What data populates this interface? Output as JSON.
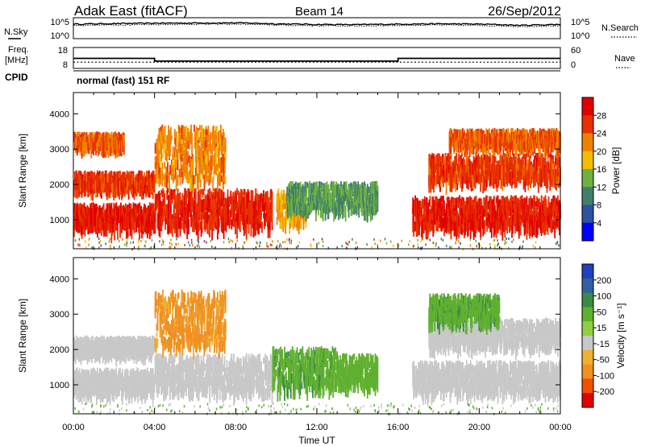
{
  "header": {
    "title": "Adak East (fitACF)",
    "beam": "Beam 14",
    "date": "26/Sep/2012"
  },
  "top_panel": {
    "noise_left_label": "N.Sky",
    "noise_right_label": "N.Search",
    "noise_left_ticks": [
      "10^5",
      "10^0"
    ],
    "noise_right_ticks": [
      "10^5",
      "10^0"
    ],
    "freq_label": "Freq.",
    "freq_unit": "[MHz]",
    "freq_ticks": [
      "18",
      "8"
    ],
    "nave_label": "Nave",
    "nave_ticks": [
      "60",
      "0"
    ],
    "cpid_label": "CPID",
    "cpid_value": "normal (fast) 151 RF"
  },
  "colors": {
    "power_scale": [
      "#0000ff",
      "#3050a0",
      "#40806a",
      "#70b040",
      "#f0c000",
      "#f08000",
      "#e83000",
      "#e00000"
    ],
    "velocity_scale": [
      "#e00000",
      "#f05000",
      "#f09020",
      "#f0b030",
      "#c8c8c8",
      "#90d040",
      "#60b030",
      "#3a8a4a",
      "#3060a0",
      "#2040c0"
    ],
    "ground_scatter": "#a0a0a0"
  },
  "chart_data": [
    {
      "type": "line",
      "name": "noise-panel",
      "xlabel": "",
      "ylabel_left": "N.Sky",
      "ylabel_right": "N.Search",
      "y_scale": "log",
      "ylim": [
        1,
        100000
      ],
      "x_range": [
        "00:00",
        "24:00"
      ],
      "series": [
        {
          "name": "N.Sky",
          "x_hours": [
            0,
            2,
            4,
            6,
            8,
            10,
            12,
            14,
            16,
            18,
            20,
            22,
            24
          ],
          "values": [
            3000,
            4000,
            5000,
            5500,
            6000,
            3500,
            2500,
            2200,
            3000,
            3500,
            3000,
            1500,
            2500
          ]
        },
        {
          "name": "N.Search",
          "x_hours": [
            0,
            2,
            4,
            6,
            8,
            10,
            12,
            14,
            16,
            18,
            20,
            22,
            24
          ],
          "values": [
            1500,
            2000,
            2500,
            2800,
            3000,
            1800,
            1300,
            1100,
            1500,
            1800,
            1500,
            800,
            1200
          ]
        }
      ]
    },
    {
      "type": "line",
      "name": "frequency-panel",
      "ylabel_left": "Freq. [MHz]",
      "ylabel_right": "Nave",
      "ylim_freq": [
        8,
        18
      ],
      "ylim_nave": [
        0,
        60
      ],
      "series": [
        {
          "name": "Freq.",
          "x_hours": [
            0,
            4,
            4,
            16,
            16,
            24
          ],
          "values": [
            12.8,
            12.8,
            11.5,
            11.5,
            12.8,
            12.8
          ]
        },
        {
          "name": "Nave",
          "x_hours": [
            0,
            24
          ],
          "values": [
            18,
            18
          ]
        }
      ]
    },
    {
      "type": "heatmap",
      "name": "power-panel",
      "xlabel": "Time UT",
      "ylabel": "Slant Range [km]",
      "x_range_hours": [
        0,
        24
      ],
      "ylim": [
        180,
        4600
      ],
      "y_ticks": [
        1000,
        2000,
        3000,
        4000
      ],
      "colorbar_label": "Power [dB]",
      "colorbar_range": [
        0,
        32
      ],
      "colorbar_ticks": [
        "4",
        "8",
        "12",
        "16",
        "20",
        "24",
        "28"
      ],
      "echo_bands": [
        {
          "t0": 0.0,
          "t1": 4.0,
          "r0": 900,
          "r1": 1500,
          "level": 28
        },
        {
          "t0": 0.0,
          "t1": 4.0,
          "r0": 2000,
          "r1": 2400,
          "level": 26
        },
        {
          "t0": 0.0,
          "t1": 2.5,
          "r0": 3200,
          "r1": 3500,
          "level": 24
        },
        {
          "t0": 4.0,
          "t1": 9.8,
          "r0": 900,
          "r1": 1900,
          "level": 27
        },
        {
          "t0": 4.0,
          "t1": 7.5,
          "r0": 2200,
          "r1": 3700,
          "level": 22
        },
        {
          "t0": 10.0,
          "t1": 11.5,
          "r0": 1000,
          "r1": 1900,
          "level": 20
        },
        {
          "t0": 10.5,
          "t1": 15.0,
          "r0": 1400,
          "r1": 2100,
          "level": 12
        },
        {
          "t0": 16.7,
          "t1": 24.0,
          "r0": 900,
          "r1": 1700,
          "level": 28
        },
        {
          "t0": 17.5,
          "t1": 24.0,
          "r0": 2200,
          "r1": 2900,
          "level": 26
        },
        {
          "t0": 18.5,
          "t1": 24.0,
          "r0": 3200,
          "r1": 3600,
          "level": 24
        }
      ]
    },
    {
      "type": "heatmap",
      "name": "velocity-panel",
      "xlabel": "Time UT",
      "ylabel": "Slant Range [km]",
      "x_range_hours": [
        0,
        24
      ],
      "ylim": [
        180,
        4600
      ],
      "y_ticks": [
        1000,
        2000,
        3000,
        4000
      ],
      "x_ticks": [
        "00:00",
        "04:00",
        "08:00",
        "12:00",
        "16:00",
        "20:00",
        "00:00"
      ],
      "colorbar_label": "Velocity [m s⁻¹]",
      "colorbar_range": [
        -250,
        250
      ],
      "colorbar_ticks": [
        "200",
        "100",
        "50",
        "15",
        "-15",
        "-50",
        "-100",
        "-200"
      ],
      "echo_bands": [
        {
          "t0": 0.0,
          "t1": 4.0,
          "r0": 900,
          "r1": 1500,
          "level": 0
        },
        {
          "t0": 0.0,
          "t1": 4.0,
          "r0": 2000,
          "r1": 2400,
          "level": 0
        },
        {
          "t0": 4.0,
          "t1": 9.8,
          "r0": 900,
          "r1": 1900,
          "level": 0
        },
        {
          "t0": 4.0,
          "t1": 7.5,
          "r0": 2200,
          "r1": 3700,
          "level": -60
        },
        {
          "t0": 9.8,
          "t1": 13.0,
          "r0": 1000,
          "r1": 2100,
          "level": 40
        },
        {
          "t0": 13.0,
          "t1": 15.0,
          "r0": 1100,
          "r1": 1900,
          "level": 35
        },
        {
          "t0": 16.7,
          "t1": 24.0,
          "r0": 900,
          "r1": 1700,
          "level": 0
        },
        {
          "t0": 17.5,
          "t1": 24.0,
          "r0": 2200,
          "r1": 2900,
          "level": 0
        },
        {
          "t0": 17.5,
          "t1": 21.0,
          "r0": 2900,
          "r1": 3600,
          "level": 40
        }
      ]
    }
  ]
}
